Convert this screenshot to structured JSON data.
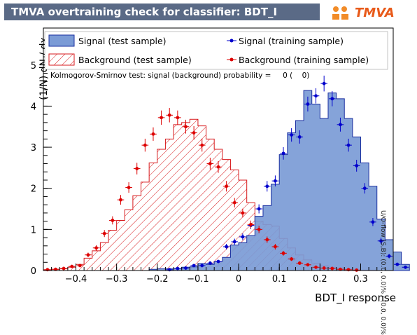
{
  "header": {
    "title": "TMVA overtraining check for classifier: BDT_I",
    "logo_text": "TMVA"
  },
  "legend": {
    "sig_test": "Signal (test sample)",
    "bkg_test": "Background (test sample)",
    "sig_train": "Signal (training sample)",
    "bkg_train": "Background (training sample)"
  },
  "annotation": {
    "ks": "Kolmogorov-Smirnov test: signal (background) probability =     0 (    0)",
    "side": "U/O-flow (S,B): (0.0, 0.0)% / (0.0, 0.0)%"
  },
  "colors": {
    "signal_fill": "#7b9bd6",
    "signal_line": "#1a2fa0",
    "background_line": "#d7191c",
    "train_sig": "#0000cc",
    "train_bkg": "#dd0000",
    "title_bg": "#5a6a86"
  },
  "chart_data": {
    "type": "histogram",
    "xlabel": "BDT_I response",
    "ylabel": "(1/N) dN / dx",
    "xlim": [
      -0.48,
      0.38
    ],
    "ylim": [
      0,
      5.9
    ],
    "xticks": [
      -0.4,
      -0.3,
      -0.2,
      -0.1,
      0,
      0.1,
      0.2,
      0.3
    ],
    "xtick_labels": [
      "−0.4",
      "−0.3",
      "−0.2",
      "−0.1",
      "0",
      "0.1",
      "0.2",
      "0.3"
    ],
    "yticks": [
      0,
      1,
      2,
      3,
      4,
      5
    ],
    "bin_edges_start": -0.48,
    "bin_width": 0.02,
    "series": [
      {
        "name": "Signal (test sample)",
        "style": "filled-histogram",
        "values": [
          0,
          0,
          0,
          0,
          0,
          0,
          0,
          0,
          0,
          0,
          0,
          0,
          0,
          0.03,
          0.04,
          0.04,
          0.05,
          0.08,
          0.09,
          0.17,
          0.15,
          0.22,
          0.32,
          0.62,
          0.68,
          0.85,
          1.32,
          1.58,
          2.1,
          2.82,
          3.35,
          3.65,
          4.38,
          4.05,
          3.7,
          4.32,
          4.18,
          3.7,
          3.25,
          2.62,
          2.05,
          1.25,
          0.75,
          0.45,
          0.15
        ]
      },
      {
        "name": "Background (test sample)",
        "style": "hatched-histogram",
        "values": [
          0.02,
          0.03,
          0.04,
          0.08,
          0.15,
          0.3,
          0.48,
          0.68,
          0.98,
          1.22,
          1.48,
          1.82,
          2.15,
          2.62,
          2.95,
          3.2,
          3.55,
          3.6,
          3.68,
          3.52,
          3.2,
          2.95,
          2.7,
          2.45,
          2.2,
          1.65,
          1.2,
          1.12,
          1.08,
          0.78,
          0.55,
          0.38,
          0.26,
          0.18,
          0.12,
          0.08,
          0.06,
          0.04,
          0.02,
          0.01,
          0.01,
          0.0,
          0,
          0,
          0
        ]
      },
      {
        "name": "Signal (training sample)",
        "style": "points",
        "values": [
          0,
          0,
          0,
          0,
          0,
          0,
          0,
          0,
          0,
          0,
          0,
          0,
          0,
          0,
          0,
          0.02,
          0.05,
          0.06,
          0.12,
          0.12,
          0.18,
          0.22,
          0.58,
          0.7,
          0.82,
          1.1,
          1.5,
          2.05,
          2.18,
          2.85,
          3.3,
          3.25,
          4.05,
          4.25,
          4.55,
          4.18,
          3.55,
          3.05,
          2.55,
          2.0,
          1.18,
          0.72,
          0.35,
          0.15,
          0.08
        ]
      },
      {
        "name": "Background (training sample)",
        "style": "points",
        "values": [
          0.02,
          0.03,
          0.05,
          0.1,
          0.12,
          0.38,
          0.55,
          0.9,
          1.22,
          1.72,
          2.02,
          2.48,
          3.05,
          3.32,
          3.72,
          3.78,
          3.72,
          3.5,
          3.35,
          3.05,
          2.6,
          2.52,
          2.05,
          1.65,
          1.4,
          1.12,
          1.0,
          0.75,
          0.58,
          0.42,
          0.28,
          0.18,
          0.14,
          0.08,
          0.06,
          0.05,
          0.03,
          0.02,
          0.01,
          0,
          0,
          0,
          0,
          0,
          0
        ]
      }
    ]
  }
}
